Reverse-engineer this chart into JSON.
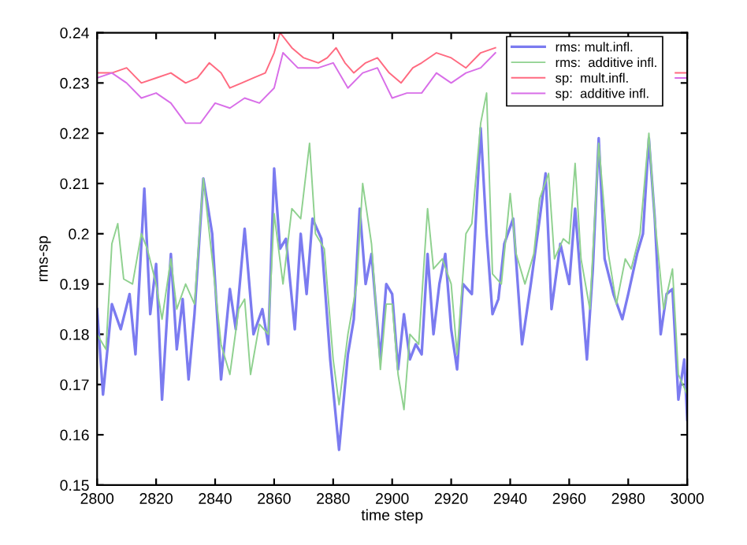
{
  "chart_data": {
    "type": "line",
    "xlabel": "time step",
    "ylabel": "rms-sp",
    "xlim": [
      2800,
      3000
    ],
    "xticks": [
      2800,
      2820,
      2840,
      2860,
      2880,
      2900,
      2920,
      2940,
      2960,
      2980,
      3000
    ],
    "ylim": [
      0.15,
      0.24
    ],
    "yticks": [
      0.15,
      0.16,
      0.17,
      0.18,
      0.19,
      0.2,
      0.21,
      0.22,
      0.23,
      0.24
    ],
    "grid": false,
    "legend": "top right",
    "marker": "none",
    "line_style": "solid",
    "series": [
      {
        "name": "rms: mult.infl.",
        "color": "#7b7bf0",
        "x": [
          2800,
          2802,
          2805,
          2808,
          2811,
          2813,
          2816,
          2818,
          2820,
          2822,
          2825,
          2827,
          2829,
          2831,
          2833,
          2836,
          2839,
          2842,
          2845,
          2847,
          2850,
          2853,
          2856,
          2858,
          2860,
          2862,
          2864,
          2867,
          2869,
          2871,
          2873,
          2876,
          2879,
          2882,
          2885,
          2887,
          2889,
          2891,
          2893,
          2896,
          2898,
          2900,
          2902,
          2904,
          2906,
          2908,
          2910,
          2912,
          2914,
          2916,
          2918,
          2920,
          2922,
          2924,
          2927,
          2930,
          2932,
          2934,
          2936,
          2938,
          2941,
          2944,
          2947,
          2950,
          2952,
          2954,
          2957,
          2960,
          2962,
          2964,
          2966,
          2968,
          2970,
          2972,
          2975,
          2978,
          2980,
          2983,
          2985,
          2987,
          2989,
          2991,
          2993,
          2995,
          2997,
          2999,
          3000
        ],
        "values": [
          0.185,
          0.168,
          0.186,
          0.181,
          0.188,
          0.176,
          0.209,
          0.184,
          0.194,
          0.167,
          0.196,
          0.177,
          0.187,
          0.171,
          0.184,
          0.211,
          0.2,
          0.171,
          0.189,
          0.181,
          0.201,
          0.18,
          0.185,
          0.178,
          0.213,
          0.197,
          0.199,
          0.181,
          0.2,
          0.188,
          0.203,
          0.199,
          0.175,
          0.157,
          0.176,
          0.183,
          0.205,
          0.19,
          0.196,
          0.175,
          0.19,
          0.188,
          0.173,
          0.184,
          0.175,
          0.178,
          0.176,
          0.196,
          0.18,
          0.19,
          0.196,
          0.181,
          0.173,
          0.19,
          0.188,
          0.221,
          0.2,
          0.184,
          0.187,
          0.198,
          0.203,
          0.178,
          0.19,
          0.203,
          0.212,
          0.185,
          0.198,
          0.19,
          0.205,
          0.19,
          0.175,
          0.193,
          0.219,
          0.195,
          0.188,
          0.183,
          0.188,
          0.196,
          0.2,
          0.219,
          0.203,
          0.18,
          0.188,
          0.189,
          0.167,
          0.175,
          0.163
        ]
      },
      {
        "name": "rms:  additive infl.",
        "color": "#8fd18f",
        "x": [
          2800,
          2803,
          2805,
          2807,
          2809,
          2812,
          2815,
          2817,
          2820,
          2822,
          2825,
          2827,
          2830,
          2833,
          2836,
          2839,
          2842,
          2845,
          2848,
          2850,
          2852,
          2855,
          2858,
          2860,
          2863,
          2866,
          2869,
          2872,
          2874,
          2877,
          2880,
          2882,
          2885,
          2888,
          2890,
          2893,
          2896,
          2898,
          2900,
          2902,
          2904,
          2906,
          2909,
          2912,
          2914,
          2917,
          2920,
          2922,
          2925,
          2927,
          2930,
          2932,
          2934,
          2937,
          2940,
          2942,
          2945,
          2948,
          2950,
          2953,
          2955,
          2958,
          2960,
          2962,
          2964,
          2967,
          2970,
          2973,
          2976,
          2979,
          2981,
          2984,
          2987,
          2989,
          2992,
          2995,
          2997,
          3000
        ],
        "values": [
          0.18,
          0.177,
          0.198,
          0.202,
          0.191,
          0.19,
          0.2,
          0.197,
          0.19,
          0.183,
          0.195,
          0.185,
          0.19,
          0.186,
          0.211,
          0.195,
          0.178,
          0.172,
          0.185,
          0.187,
          0.172,
          0.182,
          0.18,
          0.204,
          0.19,
          0.205,
          0.203,
          0.218,
          0.2,
          0.197,
          0.175,
          0.166,
          0.18,
          0.19,
          0.21,
          0.198,
          0.173,
          0.186,
          0.186,
          0.172,
          0.165,
          0.18,
          0.178,
          0.205,
          0.193,
          0.195,
          0.19,
          0.176,
          0.2,
          0.202,
          0.222,
          0.228,
          0.192,
          0.19,
          0.208,
          0.196,
          0.19,
          0.196,
          0.207,
          0.212,
          0.195,
          0.199,
          0.198,
          0.214,
          0.195,
          0.185,
          0.218,
          0.197,
          0.186,
          0.195,
          0.193,
          0.2,
          0.22,
          0.203,
          0.185,
          0.193,
          0.172,
          0.168
        ]
      },
      {
        "name": "sp:  mult.infl.",
        "color": "#ff6a80",
        "x": [
          2800,
          2805,
          2810,
          2815,
          2820,
          2825,
          2830,
          2834,
          2838,
          2842,
          2845,
          2849,
          2853,
          2857,
          2860,
          2862,
          2866,
          2870,
          2875,
          2878,
          2881,
          2884,
          2887,
          2891,
          2895,
          2899,
          2903,
          2907,
          2910,
          2915,
          2920,
          2925,
          2930,
          2935,
          2970,
          2996,
          3000
        ],
        "values": [
          0.232,
          0.232,
          0.233,
          0.23,
          0.231,
          0.232,
          0.23,
          0.231,
          0.234,
          0.232,
          0.229,
          0.23,
          0.231,
          0.232,
          0.236,
          0.24,
          0.237,
          0.235,
          0.234,
          0.235,
          0.237,
          0.234,
          0.232,
          0.234,
          0.235,
          0.232,
          0.23,
          0.233,
          0.234,
          0.236,
          0.235,
          0.233,
          0.236,
          0.237,
          null,
          0.232,
          0.232
        ]
      },
      {
        "name": "sp:  additive infl.",
        "color": "#d86ee8",
        "x": [
          2800,
          2805,
          2810,
          2815,
          2820,
          2825,
          2830,
          2835,
          2840,
          2845,
          2850,
          2855,
          2860,
          2863,
          2868,
          2875,
          2880,
          2885,
          2890,
          2895,
          2900,
          2905,
          2910,
          2915,
          2920,
          2925,
          2930,
          2935,
          2970,
          2996,
          3000
        ],
        "values": [
          0.231,
          0.232,
          0.23,
          0.227,
          0.228,
          0.226,
          0.222,
          0.222,
          0.226,
          0.225,
          0.227,
          0.226,
          0.229,
          0.236,
          0.233,
          0.233,
          0.234,
          0.229,
          0.232,
          0.233,
          0.227,
          0.228,
          0.228,
          0.232,
          0.23,
          0.232,
          0.233,
          0.236,
          null,
          0.231,
          0.231
        ]
      }
    ]
  }
}
